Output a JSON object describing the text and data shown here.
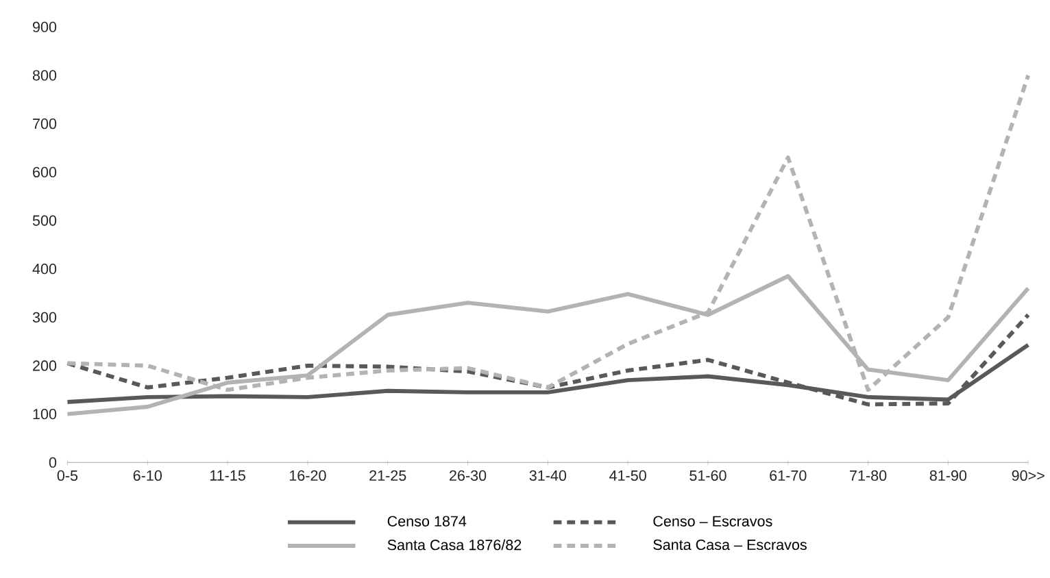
{
  "chart_data": {
    "type": "line",
    "categories": [
      "0-5",
      "6-10",
      "11-15",
      "16-20",
      "21-25",
      "26-30",
      "31-40",
      "41-50",
      "51-60",
      "61-70",
      "71-80",
      "81-90",
      "90>>"
    ],
    "ylim": [
      0,
      900
    ],
    "yticks": [
      0,
      100,
      200,
      300,
      400,
      500,
      600,
      700,
      800,
      900
    ],
    "grid": false,
    "legend": "bottom",
    "marker": "none",
    "series": [
      {
        "name": "Censo 1874",
        "color": "#595959",
        "line_style": "solid",
        "values": [
          125,
          135,
          137,
          135,
          148,
          145,
          145,
          170,
          178,
          160,
          135,
          130,
          243
        ]
      },
      {
        "name": "Censo – Escravos",
        "color": "#595959",
        "line_style": "dashed",
        "values": [
          205,
          155,
          175,
          200,
          198,
          188,
          155,
          190,
          212,
          165,
          120,
          122,
          305
        ]
      },
      {
        "name": "Santa Casa 1876/82",
        "color": "#b3b3b3",
        "line_style": "solid",
        "values": [
          100,
          115,
          165,
          180,
          305,
          330,
          312,
          348,
          305,
          385,
          192,
          170,
          360
        ]
      },
      {
        "name": "Santa Casa – Escravos",
        "color": "#b3b3b3",
        "line_style": "dashed",
        "values": [
          205,
          200,
          150,
          175,
          190,
          195,
          155,
          245,
          310,
          630,
          150,
          300,
          800
        ]
      }
    ]
  }
}
